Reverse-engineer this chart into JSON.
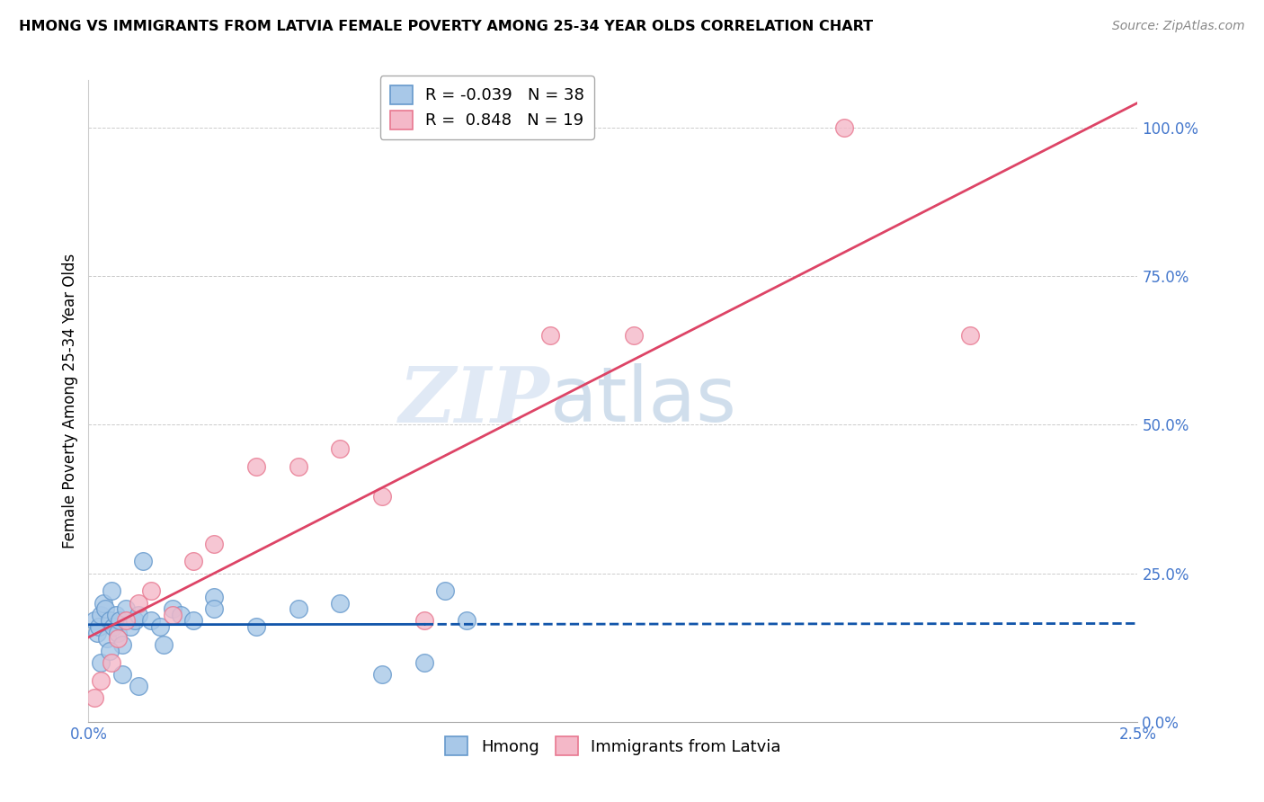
{
  "title": "HMONG VS IMMIGRANTS FROM LATVIA FEMALE POVERTY AMONG 25-34 YEAR OLDS CORRELATION CHART",
  "source": "Source: ZipAtlas.com",
  "ylabel": "Female Poverty Among 25-34 Year Olds",
  "xlim": [
    0.0,
    0.025
  ],
  "ylim": [
    0.0,
    1.08
  ],
  "yticks": [
    0.0,
    0.25,
    0.5,
    0.75,
    1.0
  ],
  "ytick_labels": [
    "0.0%",
    "25.0%",
    "50.0%",
    "75.0%",
    "100.0%"
  ],
  "xtick_positions": [
    0.0,
    0.005,
    0.01,
    0.015,
    0.02,
    0.025
  ],
  "xtick_labels": [
    "0.0%",
    "",
    "",
    "",
    "",
    "2.5%"
  ],
  "watermark_zip": "ZIP",
  "watermark_atlas": "atlas",
  "hmong_color": "#a8c8e8",
  "hmong_edge_color": "#6699cc",
  "latvia_color": "#f4b8c8",
  "latvia_edge_color": "#e87890",
  "hmong_line_color": "#1155aa",
  "latvia_line_color": "#dd4466",
  "hmong_x": [
    0.00015,
    0.0002,
    0.00025,
    0.0003,
    0.00035,
    0.0004,
    0.00045,
    0.0005,
    0.00055,
    0.0006,
    0.00065,
    0.0007,
    0.00075,
    0.0008,
    0.0009,
    0.001,
    0.0011,
    0.0012,
    0.0013,
    0.0015,
    0.0017,
    0.002,
    0.0022,
    0.0025,
    0.003,
    0.004,
    0.005,
    0.006,
    0.007,
    0.008,
    0.0085,
    0.009,
    0.0003,
    0.0005,
    0.0008,
    0.0012,
    0.0018,
    0.003
  ],
  "hmong_y": [
    0.17,
    0.15,
    0.16,
    0.18,
    0.2,
    0.19,
    0.14,
    0.17,
    0.22,
    0.16,
    0.18,
    0.15,
    0.17,
    0.13,
    0.19,
    0.16,
    0.17,
    0.18,
    0.27,
    0.17,
    0.16,
    0.19,
    0.18,
    0.17,
    0.21,
    0.16,
    0.19,
    0.2,
    0.08,
    0.1,
    0.22,
    0.17,
    0.1,
    0.12,
    0.08,
    0.06,
    0.13,
    0.19
  ],
  "latvia_x": [
    0.00015,
    0.0003,
    0.00055,
    0.0007,
    0.0009,
    0.0012,
    0.0015,
    0.002,
    0.0025,
    0.003,
    0.004,
    0.005,
    0.006,
    0.007,
    0.008,
    0.011,
    0.013,
    0.018,
    0.021
  ],
  "latvia_y": [
    0.04,
    0.07,
    0.1,
    0.14,
    0.17,
    0.2,
    0.22,
    0.18,
    0.27,
    0.3,
    0.43,
    0.43,
    0.46,
    0.38,
    0.17,
    0.65,
    0.65,
    1.0,
    0.65
  ],
  "hmong_line_x_solid_end": 0.008,
  "hmong_line_x_dashed_start": 0.008,
  "hmong_line_x_end": 0.025
}
